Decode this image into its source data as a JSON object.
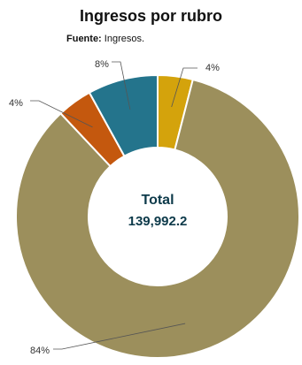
{
  "title": "Ingresos por rubro",
  "source": {
    "label": "Fuente:",
    "text": "Ingresos."
  },
  "center": {
    "title": "Total",
    "value": "139,992.2"
  },
  "chart_data": {
    "type": "pie",
    "variant": "donut",
    "title": "Ingresos por rubro",
    "total": "139,992.2",
    "slices": [
      {
        "label": "4%",
        "value": 4,
        "color": "#d4a30c"
      },
      {
        "label": "84%",
        "value": 84,
        "color": "#9c8f5c"
      },
      {
        "label": "4%",
        "value": 4,
        "color": "#c4580e"
      },
      {
        "label": "8%",
        "value": 8,
        "color": "#24748c"
      }
    ]
  }
}
